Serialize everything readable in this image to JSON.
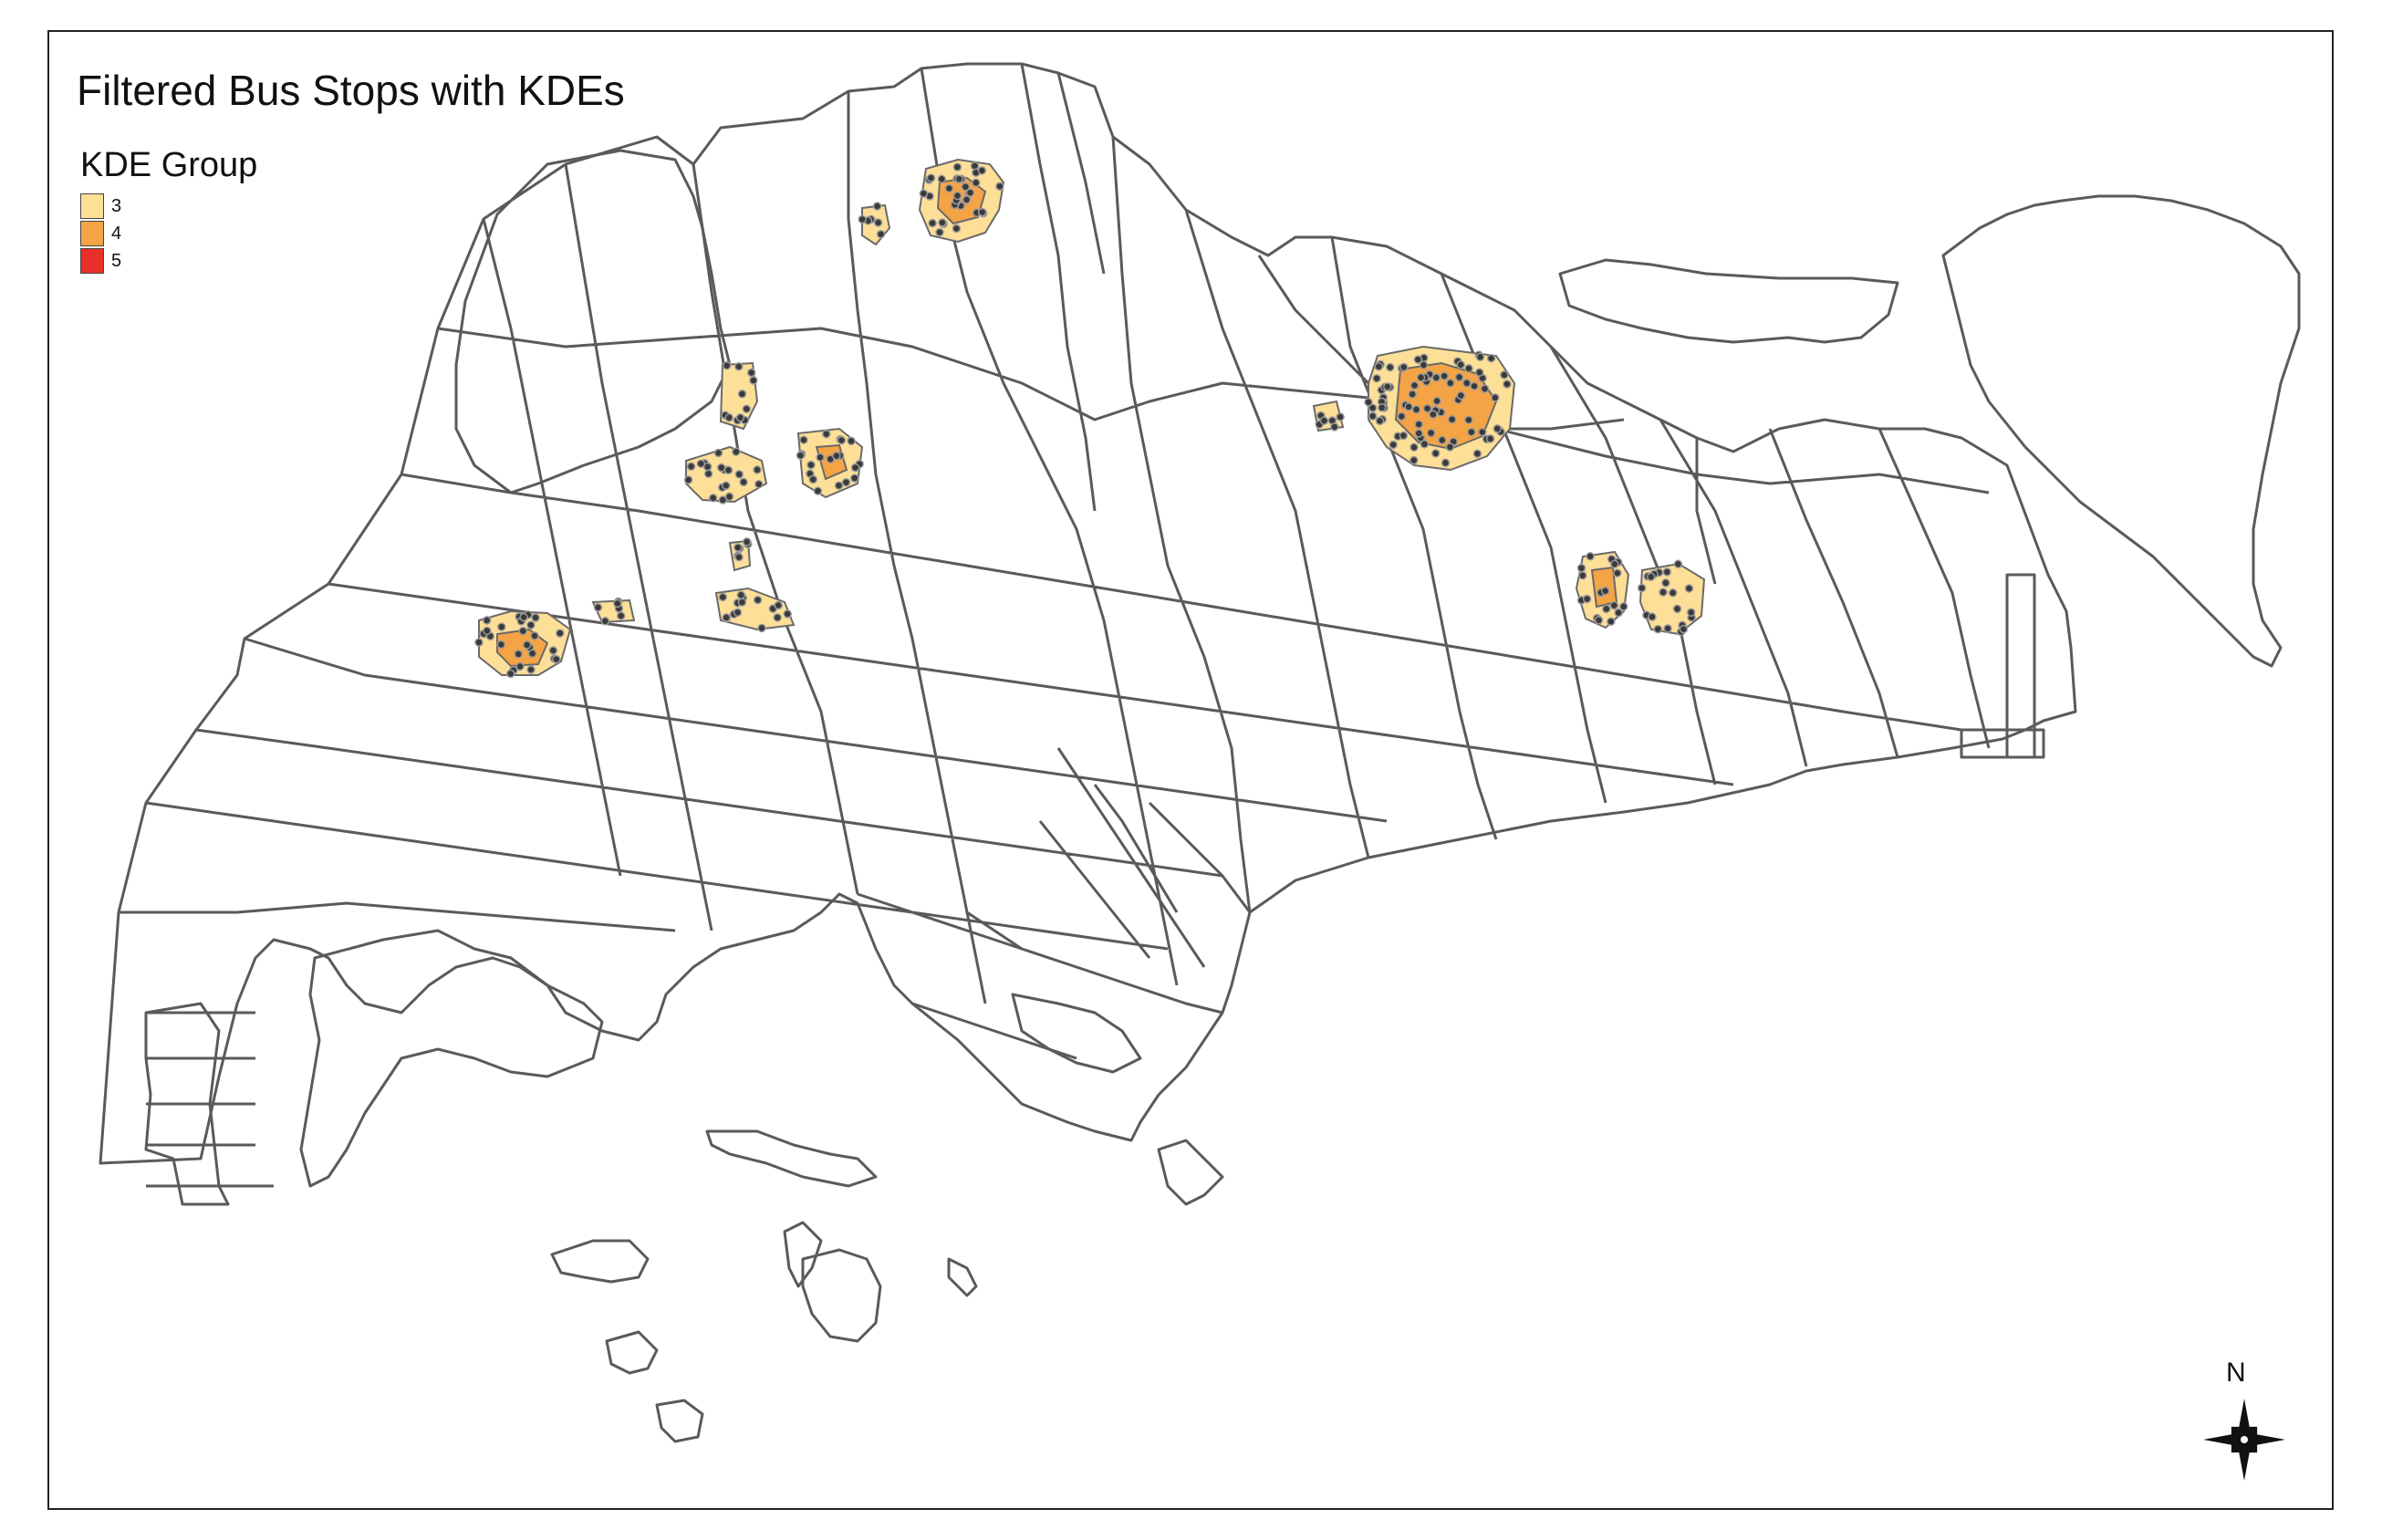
{
  "map": {
    "title": "Filtered Bus Stops with KDEs",
    "legend": {
      "title": "KDE Group",
      "items": [
        {
          "label": "3",
          "color": "#fddf97"
        },
        {
          "label": "4",
          "color": "#f4a345"
        },
        {
          "label": "5",
          "color": "#e8302a"
        }
      ]
    },
    "north_arrow": {
      "label": "N"
    },
    "colors": {
      "boundary": "#5a5a5a",
      "bus_stop_point": "#3a3a3a",
      "bus_stop_outline": "#9a9a9a"
    }
  }
}
